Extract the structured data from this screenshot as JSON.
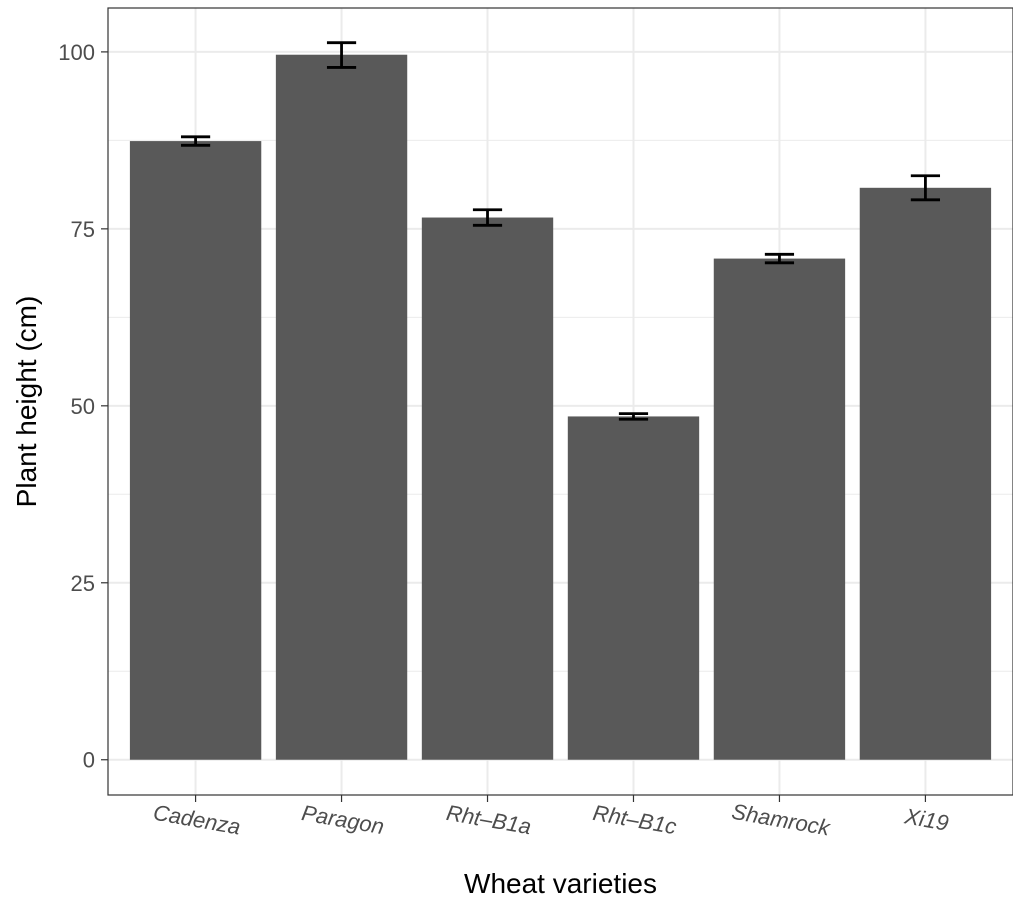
{
  "chart_data": {
    "type": "bar",
    "title": "",
    "xlabel": "Wheat varieties",
    "ylabel": "Plant height (cm)",
    "categories": [
      "Cadenza",
      "Paragon",
      "Rht–B1a",
      "Rht–B1c",
      "Shamrock",
      "Xi19"
    ],
    "values": [
      87.4,
      99.6,
      76.6,
      48.5,
      70.8,
      80.8
    ],
    "error_low": [
      86.8,
      97.8,
      75.5,
      48.1,
      70.2,
      79.1
    ],
    "error_high": [
      88.0,
      101.3,
      77.7,
      48.9,
      71.4,
      82.5
    ],
    "ylim": [
      -4.98,
      106.2
    ],
    "yticks": [
      0,
      25,
      50,
      75,
      100
    ],
    "grid": true,
    "legend": "none",
    "colors": {
      "bar": "#595959",
      "errorbar": "#000000",
      "grid": "#ebebeb",
      "panel_border": "#333333",
      "tick_text": "#4d4d4d"
    }
  }
}
